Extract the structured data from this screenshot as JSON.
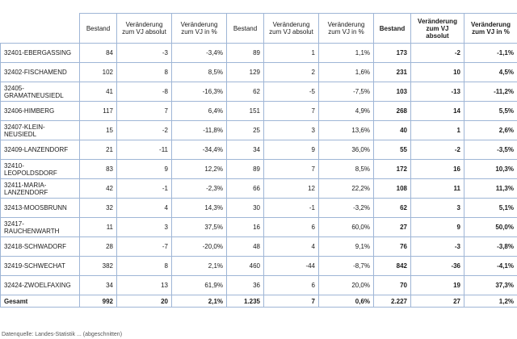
{
  "headers": [
    "",
    "Bestand",
    "Veränderung zum VJ absolut",
    "Veränderung zum VJ in %",
    "Bestand",
    "Veränderung zum VJ absolut",
    "Veränderung zum VJ in %",
    "Bestand",
    "Veränderung zum VJ absolut",
    "Veränderung zum VJ in %"
  ],
  "rows": [
    [
      "32401-EBERGASSING",
      "84",
      "-3",
      "-3,4%",
      "89",
      "1",
      "1,1%",
      "173",
      "-2",
      "-1,1%"
    ],
    [
      "32402-FISCHAMEND",
      "102",
      "8",
      "8,5%",
      "129",
      "2",
      "1,6%",
      "231",
      "10",
      "4,5%"
    ],
    [
      "32405-GRAMATNEUSIEDL",
      "41",
      "-8",
      "-16,3%",
      "62",
      "-5",
      "-7,5%",
      "103",
      "-13",
      "-11,2%"
    ],
    [
      "32406-HIMBERG",
      "117",
      "7",
      "6,4%",
      "151",
      "7",
      "4,9%",
      "268",
      "14",
      "5,5%"
    ],
    [
      "32407-KLEIN-NEUSIEDL",
      "15",
      "-2",
      "-11,8%",
      "25",
      "3",
      "13,6%",
      "40",
      "1",
      "2,6%"
    ],
    [
      "32409-LANZENDORF",
      "21",
      "-11",
      "-34,4%",
      "34",
      "9",
      "36,0%",
      "55",
      "-2",
      "-3,5%"
    ],
    [
      "32410-LEOPOLDSDORF",
      "83",
      "9",
      "12,2%",
      "89",
      "7",
      "8,5%",
      "172",
      "16",
      "10,3%"
    ],
    [
      "32411-MARIA-LANZENDORF",
      "42",
      "-1",
      "-2,3%",
      "66",
      "12",
      "22,2%",
      "108",
      "11",
      "11,3%"
    ],
    [
      "32413-MOOSBRUNN",
      "32",
      "4",
      "14,3%",
      "30",
      "-1",
      "-3,2%",
      "62",
      "3",
      "5,1%"
    ],
    [
      "32417-RAUCHENWARTH",
      "11",
      "3",
      "37,5%",
      "16",
      "6",
      "60,0%",
      "27",
      "9",
      "50,0%"
    ],
    [
      "32418-SCHWADORF",
      "28",
      "-7",
      "-20,0%",
      "48",
      "4",
      "9,1%",
      "76",
      "-3",
      "-3,8%"
    ],
    [
      "32419-SCHWECHAT",
      "382",
      "8",
      "2,1%",
      "460",
      "-44",
      "-8,7%",
      "842",
      "-36",
      "-4,1%"
    ],
    [
      "32424-ZWOELFAXING",
      "34",
      "13",
      "61,9%",
      "36",
      "6",
      "20,0%",
      "70",
      "19",
      "37,3%"
    ]
  ],
  "total": [
    "Gesamt",
    "992",
    "20",
    "2,1%",
    "1.235",
    "7",
    "0,6%",
    "2.227",
    "27",
    "1,2%"
  ],
  "footnote": "Datenquelle: Landes-Statistik ... (abgeschnitten)"
}
